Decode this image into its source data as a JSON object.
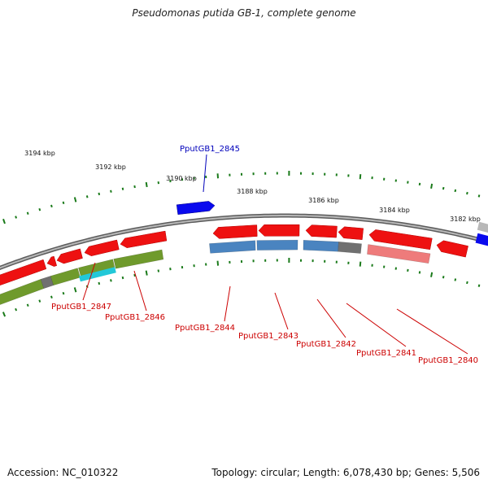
{
  "title": "Pseudomonas putida GB-1, complete genome",
  "footer": {
    "accession": "Accession: NC_010322",
    "summary": "Topology: circular; Length: 6,078,430 bp; Genes: 5,506"
  },
  "colors": {
    "backbone": "#8a8a8a",
    "tick": "#1a7a1a",
    "cds_red": "#ee1111",
    "cds_blue": "#0a0aee",
    "cds_pink": "#ee7b7b",
    "cds_gray": "#9a9a9a",
    "track_olive": "#6f9a2c",
    "track_steel": "#4a84c0",
    "track_cyan": "#22c8d8",
    "track_darkgray": "#707070",
    "label_red": "#cc0000",
    "label_blue": "#0000bb"
  },
  "scale_labels": [
    "3194 kbp",
    "3192 kbp",
    "3190 kbp",
    "3188 kbp",
    "3186 kbp",
    "3184 kbp",
    "3182 kbp"
  ],
  "gene_labels": [
    {
      "name": "PputGB1_2845",
      "strand": "forward",
      "color": "label_blue"
    },
    {
      "name": "PputGB1_2847",
      "strand": "reverse",
      "color": "label_red"
    },
    {
      "name": "PputGB1_2846",
      "strand": "reverse",
      "color": "label_red"
    },
    {
      "name": "PputGB1_2844",
      "strand": "reverse",
      "color": "label_red"
    },
    {
      "name": "PputGB1_2843",
      "strand": "reverse",
      "color": "label_red"
    },
    {
      "name": "PputGB1_2842",
      "strand": "reverse",
      "color": "label_red"
    },
    {
      "name": "PputGB1_2841",
      "strand": "reverse",
      "color": "label_red"
    },
    {
      "name": "PputGB1_2840",
      "strand": "reverse",
      "color": "label_red"
    }
  ]
}
